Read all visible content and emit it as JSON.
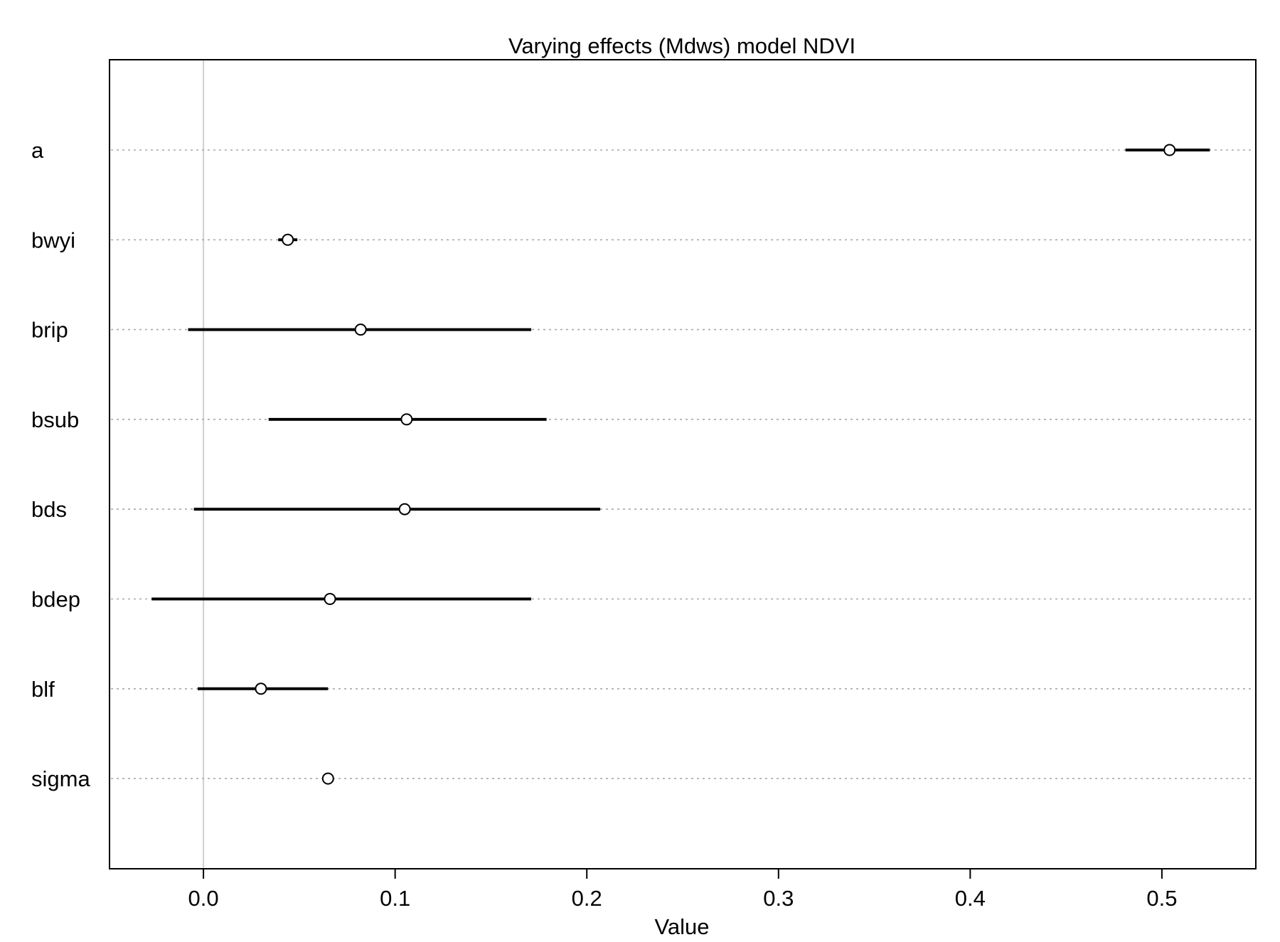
{
  "chart_data": {
    "type": "scatter",
    "subtype": "coefficient-interval-plot",
    "title": "Varying effects (Mdws) model NDVI",
    "xlabel": "Value",
    "ylabel": "",
    "xlim": [
      -0.049,
      0.549
    ],
    "xticks": [
      0.0,
      0.1,
      0.2,
      0.3,
      0.4,
      0.5
    ],
    "xtick_labels": [
      "0.0",
      "0.1",
      "0.2",
      "0.3",
      "0.4",
      "0.5"
    ],
    "reference_line": 0.0,
    "grid": "horizontal dotted row guides",
    "parameters": [
      {
        "label": "a",
        "mean": 0.504,
        "lower": 0.481,
        "upper": 0.525
      },
      {
        "label": "bwyi",
        "mean": 0.044,
        "lower": 0.039,
        "upper": 0.049
      },
      {
        "label": "brip",
        "mean": 0.082,
        "lower": -0.008,
        "upper": 0.171
      },
      {
        "label": "bsub",
        "mean": 0.106,
        "lower": 0.034,
        "upper": 0.179
      },
      {
        "label": "bds",
        "mean": 0.105,
        "lower": -0.005,
        "upper": 0.207
      },
      {
        "label": "bdep",
        "mean": 0.066,
        "lower": -0.027,
        "upper": 0.171
      },
      {
        "label": "blf",
        "mean": 0.03,
        "lower": -0.003,
        "upper": 0.065
      },
      {
        "label": "sigma",
        "mean": 0.065,
        "lower": 0.062,
        "upper": 0.067
      }
    ],
    "colors": {
      "interval": "#000000",
      "point": "#000000",
      "guide": "#a8a8a8",
      "zero_line": "#d0d0d0",
      "frame": "#000000"
    }
  }
}
